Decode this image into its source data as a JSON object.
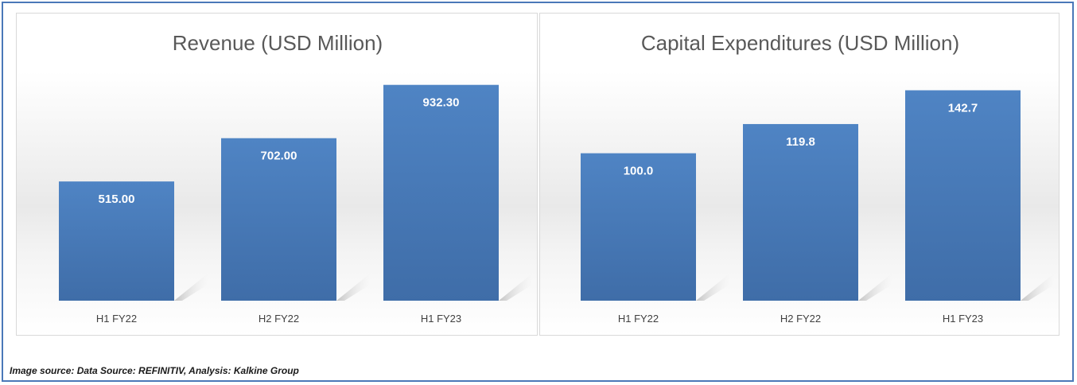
{
  "chart_data": [
    {
      "type": "bar",
      "title": "Revenue (USD Million)",
      "categories": [
        "H1 FY22",
        "H2 FY22",
        "H1 FY23"
      ],
      "values": [
        515.0,
        702.0,
        932.3
      ],
      "value_labels": [
        "515.00",
        "702.00",
        "932.30"
      ],
      "xlabel": "",
      "ylabel": "",
      "ylim": [
        0,
        1000
      ],
      "grid": false,
      "legend": "none",
      "bar_color": "#4a7ebb"
    },
    {
      "type": "bar",
      "title": "Capital Expenditures (USD Million)",
      "categories": [
        "H1 FY22",
        "H2 FY22",
        "H1 FY23"
      ],
      "values": [
        100.0,
        119.8,
        142.7
      ],
      "value_labels": [
        "100.0",
        "119.8",
        "142.7"
      ],
      "xlabel": "",
      "ylabel": "",
      "ylim": [
        0,
        157
      ],
      "grid": false,
      "legend": "none",
      "bar_color": "#4a7ebb"
    }
  ],
  "footer": {
    "source": "Image source: Data Source: REFINITIV, Analysis: Kalkine Group"
  }
}
